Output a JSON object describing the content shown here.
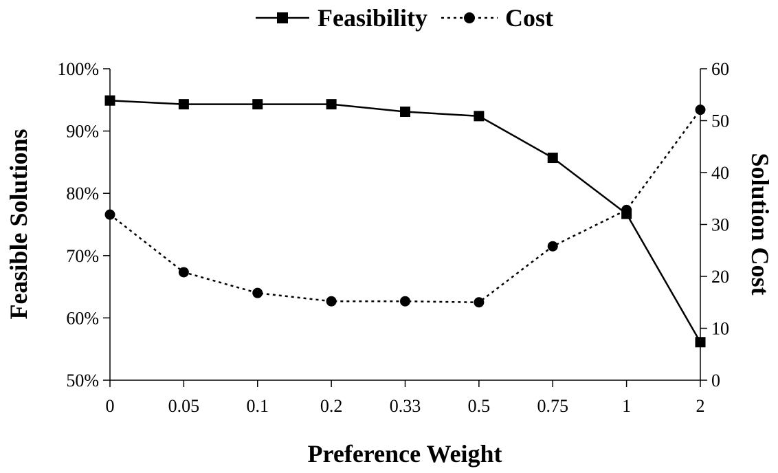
{
  "chart_data": {
    "type": "line",
    "categories": [
      "0",
      "0.05",
      "0.1",
      "0.2",
      "0.33",
      "0.5",
      "0.75",
      "1",
      "2"
    ],
    "xlabel": "Preference Weight",
    "ylabel_left": "Feasible Solutions",
    "ylabel_right": "Solution Cost",
    "ylim_left": [
      50,
      100
    ],
    "yticks_left": [
      "50%",
      "60%",
      "70%",
      "80%",
      "90%",
      "100%"
    ],
    "ylim_right": [
      0,
      60
    ],
    "yticks_right": [
      "0",
      "10",
      "20",
      "30",
      "40",
      "50",
      "60"
    ],
    "grid": false,
    "legend_position": "top",
    "series": [
      {
        "name": "Feasibility",
        "axis": "left",
        "style": "solid",
        "marker": "square",
        "color": "#000000",
        "values": [
          94.9,
          94.3,
          94.3,
          94.3,
          93.1,
          92.4,
          85.7,
          76.7,
          56.1
        ]
      },
      {
        "name": "Cost",
        "axis": "right",
        "style": "dotted",
        "marker": "circle",
        "color": "#000000",
        "values": [
          31.9,
          20.8,
          16.8,
          15.2,
          15.2,
          15.0,
          25.8,
          32.8,
          52.1
        ]
      }
    ]
  }
}
